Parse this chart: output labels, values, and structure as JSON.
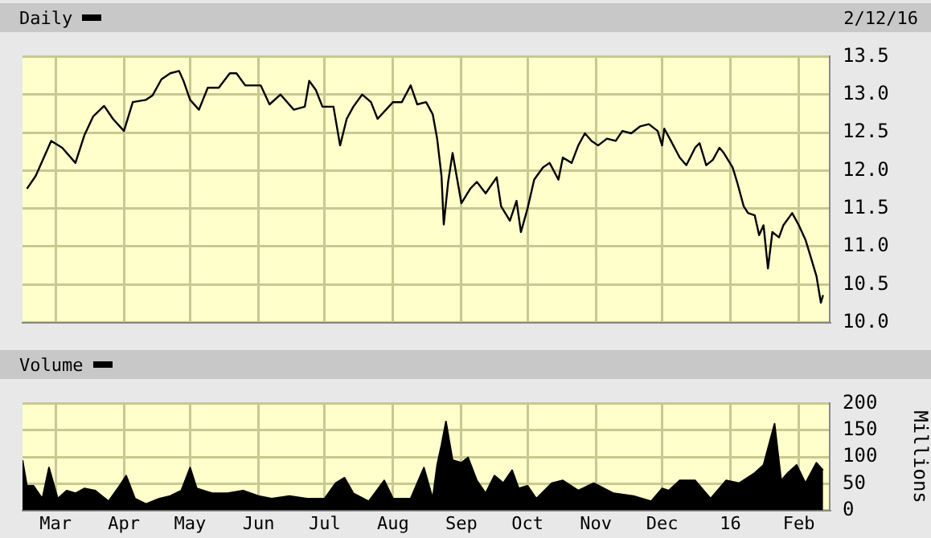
{
  "chart_data": [
    {
      "type": "line",
      "title": "Daily",
      "subtitle": "2/12/16",
      "grid": true,
      "tick_labels": "y",
      "marker": "none",
      "line_style": "solid",
      "xlim": [
        "2015-02-14",
        "2016-02-15"
      ],
      "xticks": [
        {
          "value": "2015-03-01",
          "label": null
        },
        {
          "value": "2015-04-01",
          "label": null
        },
        {
          "value": "2015-05-01",
          "label": null
        },
        {
          "value": "2015-06-01",
          "label": null
        },
        {
          "value": "2015-07-01",
          "label": null
        },
        {
          "value": "2015-08-01",
          "label": null
        },
        {
          "value": "2015-09-01",
          "label": null
        },
        {
          "value": "2015-10-01",
          "label": null
        },
        {
          "value": "2015-11-01",
          "label": null
        },
        {
          "value": "2015-12-01",
          "label": null
        },
        {
          "value": "2016-01-01",
          "label": null
        },
        {
          "value": "2016-02-01",
          "label": null
        }
      ],
      "y2lim": [
        10.0,
        13.5
      ],
      "y2ticks": [
        {
          "value": 10.0,
          "label": "10.0"
        },
        {
          "value": 10.5,
          "label": "10.5"
        },
        {
          "value": 11.0,
          "label": "11.0"
        },
        {
          "value": 11.5,
          "label": "11.5"
        },
        {
          "value": 12.0,
          "label": "12.0"
        },
        {
          "value": 12.5,
          "label": "12.5"
        },
        {
          "value": 13.0,
          "label": "13.0"
        },
        {
          "value": 13.5,
          "label": "13.5"
        }
      ],
      "series": [
        {
          "color": "#000000",
          "axis": "y2",
          "x": [
            "2015-02-16",
            "2015-02-20",
            "2015-02-27",
            "2015-03-04",
            "2015-03-10",
            "2015-03-14",
            "2015-03-18",
            "2015-03-23",
            "2015-03-27",
            "2015-04-01",
            "2015-04-05",
            "2015-04-11",
            "2015-04-14",
            "2015-04-18",
            "2015-04-22",
            "2015-04-26",
            "2015-04-28",
            "2015-05-01",
            "2015-05-05",
            "2015-05-09",
            "2015-05-14",
            "2015-05-19",
            "2015-05-22",
            "2015-05-26",
            "2015-06-02",
            "2015-06-06",
            "2015-06-11",
            "2015-06-17",
            "2015-06-22",
            "2015-06-24",
            "2015-06-27",
            "2015-06-30",
            "2015-07-05",
            "2015-07-08",
            "2015-07-11",
            "2015-07-14",
            "2015-07-18",
            "2015-07-22",
            "2015-07-25",
            "2015-08-01",
            "2015-08-05",
            "2015-08-09",
            "2015-08-12",
            "2015-08-16",
            "2015-08-19",
            "2015-08-21",
            "2015-08-23",
            "2015-08-24",
            "2015-08-26",
            "2015-08-28",
            "2015-09-01",
            "2015-09-05",
            "2015-09-08",
            "2015-09-12",
            "2015-09-17",
            "2015-09-19",
            "2015-09-23",
            "2015-09-26",
            "2015-09-28",
            "2015-10-01",
            "2015-10-04",
            "2015-10-08",
            "2015-10-11",
            "2015-10-15",
            "2015-10-17",
            "2015-10-21",
            "2015-10-24",
            "2015-10-27",
            "2015-10-30",
            "2015-11-02",
            "2015-11-06",
            "2015-11-10",
            "2015-11-13",
            "2015-11-17",
            "2015-11-21",
            "2015-11-25",
            "2015-11-29",
            "2015-12-01",
            "2015-12-02",
            "2015-12-05",
            "2015-12-09",
            "2015-12-12",
            "2015-12-16",
            "2015-12-18",
            "2015-12-21",
            "2015-12-24",
            "2015-12-27",
            "2015-12-29",
            "2016-01-02",
            "2016-01-04",
            "2016-01-07",
            "2016-01-09",
            "2016-01-12",
            "2016-01-14",
            "2016-01-16",
            "2016-01-18",
            "2016-01-20",
            "2016-01-23",
            "2016-01-25",
            "2016-01-29",
            "2016-02-01",
            "2016-02-04",
            "2016-02-06",
            "2016-02-09",
            "2016-02-11",
            "2016-02-12"
          ],
          "values": [
            11.76,
            11.93,
            12.39,
            12.3,
            12.1,
            12.46,
            12.71,
            12.85,
            12.68,
            12.52,
            12.9,
            12.93,
            12.99,
            13.2,
            13.28,
            13.31,
            13.18,
            12.93,
            12.8,
            13.09,
            13.09,
            13.28,
            13.28,
            13.12,
            13.12,
            12.87,
            13.0,
            12.8,
            12.84,
            13.18,
            13.06,
            12.84,
            12.84,
            12.33,
            12.68,
            12.84,
            13.0,
            12.9,
            12.68,
            12.9,
            12.9,
            13.12,
            12.87,
            12.9,
            12.74,
            12.42,
            11.92,
            11.29,
            11.85,
            12.23,
            11.57,
            11.76,
            11.85,
            11.7,
            11.91,
            11.53,
            11.34,
            11.6,
            11.19,
            11.5,
            11.88,
            12.04,
            12.1,
            11.88,
            12.17,
            12.1,
            12.33,
            12.49,
            12.39,
            12.33,
            12.42,
            12.39,
            12.52,
            12.49,
            12.58,
            12.61,
            12.52,
            12.33,
            12.55,
            12.39,
            12.17,
            12.07,
            12.3,
            12.36,
            12.07,
            12.14,
            12.3,
            12.23,
            12.04,
            11.85,
            11.53,
            11.44,
            11.41,
            11.15,
            11.28,
            10.71,
            11.19,
            11.12,
            11.28,
            11.44,
            11.28,
            11.09,
            10.9,
            10.61,
            10.26,
            10.36
          ]
        }
      ]
    },
    {
      "type": "area",
      "title": "Volume",
      "y2label": "Millions",
      "grid": true,
      "xlim": [
        "2015-02-14",
        "2016-02-15"
      ],
      "xticks": [
        {
          "value": "2015-03-01",
          "label": "Mar"
        },
        {
          "value": "2015-04-01",
          "label": "Apr"
        },
        {
          "value": "2015-05-01",
          "label": "May"
        },
        {
          "value": "2015-06-01",
          "label": "Jun"
        },
        {
          "value": "2015-07-01",
          "label": "Jul"
        },
        {
          "value": "2015-08-01",
          "label": "Aug"
        },
        {
          "value": "2015-09-01",
          "label": "Sep"
        },
        {
          "value": "2015-10-01",
          "label": "Oct"
        },
        {
          "value": "2015-11-01",
          "label": "Nov"
        },
        {
          "value": "2015-12-01",
          "label": "Dec"
        },
        {
          "value": "2016-01-01",
          "label": "16"
        },
        {
          "value": "2016-02-01",
          "label": "Feb"
        }
      ],
      "y2lim": [
        0,
        200
      ],
      "y2ticks": [
        0,
        50,
        100,
        150,
        200
      ],
      "series": [
        {
          "color": "#000000",
          "axis": "y2",
          "x": [
            "2015-02-14",
            "2015-02-16",
            "2015-02-19",
            "2015-02-23",
            "2015-02-26",
            "2015-03-02",
            "2015-03-06",
            "2015-03-10",
            "2015-03-14",
            "2015-03-19",
            "2015-03-25",
            "2015-03-30",
            "2015-04-02",
            "2015-04-06",
            "2015-04-11",
            "2015-04-17",
            "2015-04-22",
            "2015-04-27",
            "2015-05-01",
            "2015-05-04",
            "2015-05-11",
            "2015-05-18",
            "2015-05-25",
            "2015-06-01",
            "2015-06-07",
            "2015-06-15",
            "2015-06-23",
            "2015-07-01",
            "2015-07-06",
            "2015-07-10",
            "2015-07-14",
            "2015-07-21",
            "2015-07-28",
            "2015-08-01",
            "2015-08-09",
            "2015-08-15",
            "2015-08-19",
            "2015-08-21",
            "2015-08-23",
            "2015-08-25",
            "2015-08-28",
            "2015-09-01",
            "2015-09-04",
            "2015-09-08",
            "2015-09-12",
            "2015-09-16",
            "2015-09-20",
            "2015-09-24",
            "2015-09-27",
            "2015-10-01",
            "2015-10-05",
            "2015-10-12",
            "2015-10-17",
            "2015-10-24",
            "2015-10-31",
            "2015-11-09",
            "2015-11-18",
            "2015-11-26",
            "2015-12-01",
            "2015-12-04",
            "2015-12-09",
            "2015-12-16",
            "2015-12-23",
            "2015-12-30",
            "2016-01-05",
            "2016-01-12",
            "2016-01-16",
            "2016-01-21",
            "2016-01-24",
            "2016-01-27",
            "2016-01-31",
            "2016-02-04",
            "2016-02-09",
            "2016-02-12"
          ],
          "values": [
            94,
            46,
            46,
            22,
            80,
            22,
            37,
            32,
            41,
            37,
            17,
            46,
            65,
            22,
            12,
            22,
            27,
            37,
            80,
            41,
            32,
            32,
            37,
            27,
            22,
            27,
            22,
            22,
            51,
            61,
            32,
            17,
            56,
            22,
            22,
            80,
            22,
            85,
            123,
            166,
            94,
            89,
            99,
            56,
            32,
            65,
            51,
            75,
            41,
            46,
            22,
            51,
            56,
            37,
            51,
            32,
            27,
            17,
            41,
            37,
            56,
            56,
            22,
            56,
            51,
            70,
            85,
            162,
            56,
            70,
            85,
            51,
            89,
            75
          ]
        }
      ]
    }
  ]
}
